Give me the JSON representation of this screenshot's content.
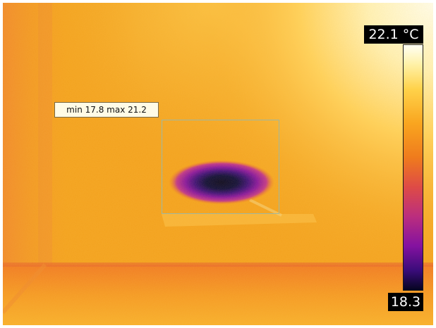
{
  "measurement": {
    "readout": "min 17.8 max 21.2",
    "min_value": 17.8,
    "max_value": 21.2
  },
  "color_scale": {
    "max_label": "22.1 °C",
    "min_label": "18.3",
    "max_value": 22.1,
    "min_value": 18.3,
    "palette": "iron",
    "colors": {
      "hot": "#fffff4",
      "warm": "#f9a51f",
      "mid": "#de4b46",
      "cool": "#8412a0",
      "cold": "#050520"
    }
  }
}
